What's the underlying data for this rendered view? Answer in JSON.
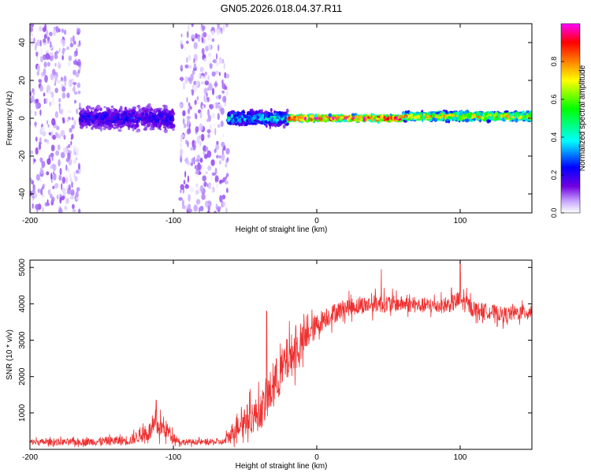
{
  "title": "GN05.2026.018.04.37.R11",
  "colors": {
    "snr_line": "#ee3030",
    "background": "#ffffff",
    "axis": "#000000"
  },
  "chart_data": [
    {
      "type": "heatmap",
      "title": "GN05.2026.018.04.37.R11",
      "xlabel": "Height of straight line (km)",
      "ylabel": "Frequency (Hz)",
      "xlim": [
        -200,
        150
      ],
      "ylim": [
        -50,
        50
      ],
      "xticks": [
        -200,
        -100,
        0,
        100
      ],
      "yticks": [
        -40,
        -20,
        0,
        20,
        40
      ],
      "xtick_labels": [
        "-200",
        "-100",
        "0",
        "100"
      ],
      "ytick_labels": [
        "-40",
        "-20",
        "0",
        "20",
        "40"
      ],
      "colorbar": {
        "label": "Normalized spectral amplitude",
        "range": [
          0,
          1
        ],
        "ticks": [
          0.0,
          0.2,
          0.4,
          0.6,
          0.8
        ],
        "tick_labels": [
          "0.0",
          "0.2",
          "0.4",
          "0.6",
          "0.8"
        ],
        "colormap": [
          "#ffffff",
          "#b48cff",
          "#7000e0",
          "#0000ff",
          "#00ffff",
          "#00ff00",
          "#ffff00",
          "#ff8000",
          "#ff0000",
          "#ff00ff"
        ]
      },
      "regions": [
        {
          "name": "scattered noise",
          "x_range": [
            -200,
            -165
          ],
          "freq_range": [
            -50,
            50
          ],
          "amplitude": 0.1
        },
        {
          "name": "noisy band",
          "x_range": [
            -165,
            -100
          ],
          "center_freq": 0,
          "freq_width": 8,
          "amplitude": 0.3
        },
        {
          "name": "noise gap",
          "x_range": [
            -118,
            -95
          ],
          "freq_range": [
            -50,
            50
          ],
          "amplitude": 0.0
        },
        {
          "name": "scattered noise",
          "x_range": [
            -95,
            -62
          ],
          "freq_range": [
            -50,
            50
          ],
          "amplitude": 0.1
        },
        {
          "name": "weak tone",
          "x_range": [
            -62,
            -20
          ],
          "center_freq": 0,
          "freq_width": 5,
          "amplitude": 0.45
        },
        {
          "name": "strong tone",
          "x_range": [
            -20,
            60
          ],
          "center_freq": 0,
          "freq_width": 2,
          "amplitude": 0.9
        },
        {
          "name": "strong tone",
          "x_range": [
            60,
            150
          ],
          "center_freq": 1,
          "freq_width": 3,
          "amplitude": 0.7
        }
      ]
    },
    {
      "type": "line",
      "xlabel": "Height of straight line (km)",
      "ylabel": "SNR (10 * v/v)",
      "xlim": [
        -200,
        150
      ],
      "ylim": [
        0,
        5200
      ],
      "xticks": [
        -200,
        -100,
        0,
        100
      ],
      "yticks": [
        1000,
        2000,
        3000,
        4000,
        5000
      ],
      "xtick_labels": [
        "-200",
        "-100",
        "0",
        "100"
      ],
      "ytick_labels": [
        "1000",
        "2000",
        "3000",
        "4000",
        "5000"
      ],
      "series": [
        {
          "name": "SNR",
          "envelope": {
            "x": [
              -200,
              -165,
              -130,
              -125,
              -118,
              -112,
              -105,
              -100,
              -95,
              -80,
              -65,
              -60,
              -55,
              -50,
              -45,
              -40,
              -35,
              -30,
              -25,
              -20,
              -15,
              -10,
              -5,
              0,
              5,
              10,
              20,
              30,
              40,
              50,
              60,
              70,
              80,
              90,
              100,
              110,
              120,
              130,
              140,
              150
            ],
            "mean": [
              200,
              200,
              250,
              350,
              450,
              650,
              550,
              350,
              200,
              200,
              200,
              400,
              700,
              800,
              900,
              1000,
              1300,
              1800,
              2100,
              2500,
              2700,
              2900,
              3200,
              3400,
              3600,
              3700,
              3900,
              3950,
              4000,
              4000,
              4000,
              3950,
              3950,
              3950,
              4100,
              3850,
              3800,
              3700,
              3750,
              3800
            ],
            "spread": [
              120,
              140,
              200,
              250,
              350,
              450,
              350,
              200,
              120,
              110,
              120,
              350,
              550,
              600,
              650,
              700,
              800,
              900,
              900,
              900,
              800,
              700,
              500,
              500,
              400,
              400,
              350,
              350,
              350,
              350,
              300,
              300,
              300,
              300,
              400,
              300,
              300,
              300,
              300,
              300
            ]
          },
          "peaks": [
            {
              "x": -112,
              "y": 1350
            },
            {
              "x": -35,
              "y": 3800
            },
            {
              "x": 45,
              "y": 4950
            },
            {
              "x": 100,
              "y": 5200
            }
          ]
        }
      ]
    }
  ]
}
